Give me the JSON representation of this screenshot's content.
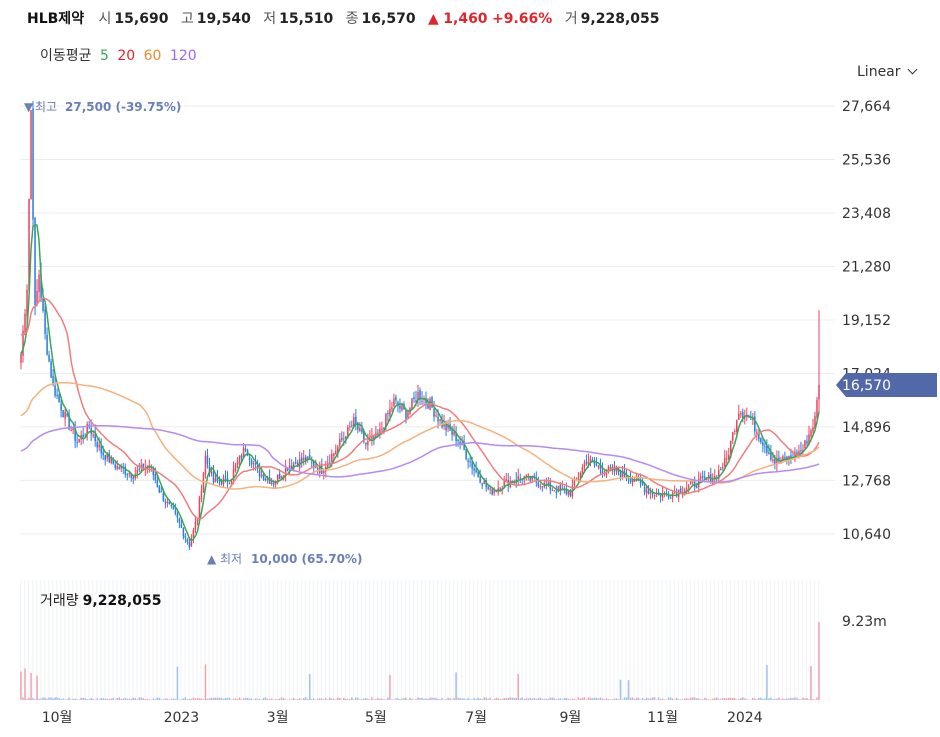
{
  "header": {
    "name": "HLB제약",
    "open_label": "시",
    "open": "15,690",
    "high_label": "고",
    "high": "19,540",
    "low_label": "저",
    "low": "15,510",
    "close_label": "종",
    "close": "16,570",
    "change_arrow": "▲",
    "change": "1,460",
    "change_pct": "+9.66%",
    "volume_label": "거",
    "volume": "9,228,055"
  },
  "ma_legend": {
    "label": "이동평균",
    "periods": [
      {
        "label": "5",
        "color": "#3aa655"
      },
      {
        "label": "20",
        "color": "#e0262d"
      },
      {
        "label": "60",
        "color": "#f08a2c"
      },
      {
        "label": "120",
        "color": "#9b6bf0"
      }
    ]
  },
  "scale_selector": {
    "label": "Linear"
  },
  "annotations": {
    "high_marker": "▼",
    "high_label": "최고",
    "high_value": "27,500 (-39.75%)",
    "low_marker": "▲",
    "low_label": "최저",
    "low_value": "10,000 (65.70%)"
  },
  "price_tag": "16,570",
  "volume_panel": {
    "label": "거래량",
    "value": "9,228,055",
    "axis_label": "9.23m"
  },
  "colors": {
    "up": "#e94560",
    "down": "#2a7de1",
    "ma5": "#3aa655",
    "ma20": "#f07d7d",
    "ma60": "#f5b27a",
    "ma120": "#b58af2",
    "tag": "#5169a8",
    "grid": "#ececec"
  },
  "chart_data": {
    "type": "candlestick",
    "ylim": [
      9800,
      28500
    ],
    "y_ticks": [
      "27,664",
      "25,536",
      "23,408",
      "21,280",
      "19,152",
      "17,024",
      "14,896",
      "12,768",
      "10,640"
    ],
    "y_tick_values": [
      27664,
      25536,
      23408,
      21280,
      19152,
      17024,
      14896,
      12768,
      10640
    ],
    "x_ticks": [
      "10월",
      "2023",
      "3월",
      "5월",
      "7월",
      "9월",
      "11월",
      "2024"
    ],
    "x_tick_index": [
      18,
      80,
      128,
      177,
      227,
      274,
      320,
      361
    ],
    "volume_max": 9228055,
    "price_anchors": [
      [
        0,
        17800
      ],
      [
        3,
        20500
      ],
      [
        5,
        27500
      ],
      [
        7,
        19500
      ],
      [
        9,
        21000
      ],
      [
        12,
        18500
      ],
      [
        16,
        16500
      ],
      [
        22,
        15300
      ],
      [
        28,
        14300
      ],
      [
        34,
        14900
      ],
      [
        40,
        13900
      ],
      [
        48,
        13300
      ],
      [
        56,
        13000
      ],
      [
        64,
        13400
      ],
      [
        70,
        12200
      ],
      [
        78,
        11200
      ],
      [
        84,
        10200
      ],
      [
        88,
        11300
      ],
      [
        92,
        13700
      ],
      [
        96,
        12700
      ],
      [
        104,
        12800
      ],
      [
        112,
        14100
      ],
      [
        118,
        13100
      ],
      [
        126,
        12700
      ],
      [
        134,
        13400
      ],
      [
        142,
        13600
      ],
      [
        150,
        13200
      ],
      [
        158,
        14100
      ],
      [
        166,
        15100
      ],
      [
        172,
        14200
      ],
      [
        178,
        14500
      ],
      [
        186,
        15900
      ],
      [
        192,
        15400
      ],
      [
        198,
        16200
      ],
      [
        204,
        15800
      ],
      [
        210,
        15000
      ],
      [
        218,
        14400
      ],
      [
        226,
        13200
      ],
      [
        234,
        12300
      ],
      [
        242,
        12700
      ],
      [
        250,
        12900
      ],
      [
        258,
        12700
      ],
      [
        266,
        12400
      ],
      [
        274,
        12300
      ],
      [
        282,
        13600
      ],
      [
        290,
        13200
      ],
      [
        298,
        13100
      ],
      [
        306,
        12800
      ],
      [
        314,
        12300
      ],
      [
        322,
        12200
      ],
      [
        330,
        12400
      ],
      [
        338,
        12700
      ],
      [
        346,
        12900
      ],
      [
        352,
        13600
      ],
      [
        358,
        15600
      ],
      [
        364,
        15200
      ],
      [
        370,
        14300
      ],
      [
        376,
        13500
      ],
      [
        382,
        13600
      ],
      [
        390,
        14000
      ],
      [
        396,
        15200
      ],
      [
        398,
        16570
      ]
    ],
    "ma_start_values": {
      "ma20": 18600,
      "ma60": 15300,
      "ma120": 13900
    }
  }
}
